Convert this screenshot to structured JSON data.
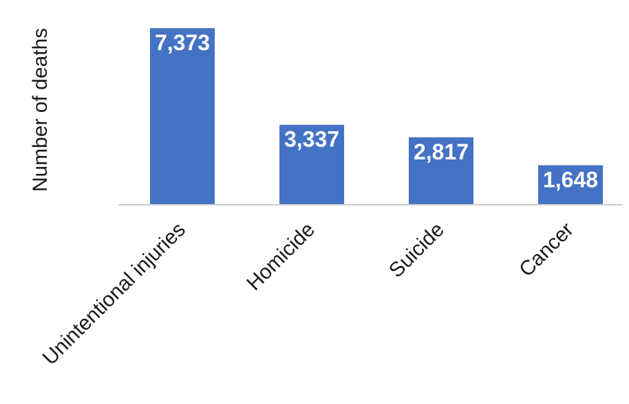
{
  "chart_data": {
    "type": "bar",
    "title": "",
    "xlabel": "",
    "ylabel": "Number of deaths",
    "categories": [
      "Unintentional injuries",
      "Homicide",
      "Suicide",
      "Cancer"
    ],
    "values": [
      7373,
      3337,
      2817,
      1648
    ],
    "value_labels": [
      "7,373",
      "3,337",
      "2,817",
      "1,648"
    ],
    "ylim": [
      0,
      7373
    ],
    "grid": false,
    "legend": "none",
    "colors": {
      "bar": "#4472c4",
      "baseline": "#cccccc",
      "label": "#ffffff"
    }
  }
}
